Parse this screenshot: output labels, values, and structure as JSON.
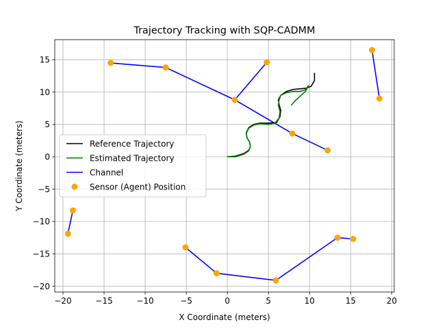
{
  "chart_data": {
    "type": "line",
    "title": "Trajectory Tracking with SQP-CADMM",
    "xlabel": "X Coordinate (meters)",
    "ylabel": "Y Coordinate (meters)",
    "xlim": [
      -21.0,
      20.3
    ],
    "ylim": [
      -20.9,
      18.1
    ],
    "xticks": [
      -20,
      -15,
      -10,
      -5,
      0,
      5,
      10,
      15,
      20
    ],
    "yticks": [
      -20,
      -15,
      -10,
      -5,
      0,
      5,
      10,
      15
    ],
    "grid": true,
    "legend_position": "center-left",
    "legend": [
      "Reference Trajectory",
      "Estimated Trajectory",
      "Channel",
      "Sensor (Agent) Position"
    ],
    "colors": {
      "reference": "#000000",
      "estimated": "#008000",
      "channel": "#0000ff",
      "sensor": "#ffa500",
      "grid": "#b0b0b0"
    },
    "series": [
      {
        "name": "Reference Trajectory",
        "x": [
          0.0,
          1.0,
          2.0,
          2.6,
          2.8,
          2.7,
          2.4,
          2.3,
          2.6,
          3.2,
          4.0,
          5.0,
          6.0,
          6.4,
          6.5,
          6.3,
          6.2,
          6.5,
          7.2,
          8.0,
          8.8,
          9.6,
          10.2,
          10.6,
          10.6
        ],
        "y": [
          0.0,
          0.1,
          0.5,
          1.0,
          1.6,
          2.3,
          2.9,
          3.7,
          4.5,
          5.0,
          5.2,
          5.2,
          5.3,
          6.2,
          7.2,
          8.0,
          8.8,
          9.5,
          10.1,
          10.4,
          10.5,
          10.6,
          10.9,
          11.8,
          12.9
        ]
      },
      {
        "name": "Estimated Trajectory",
        "x": [
          0.0,
          1.0,
          2.0,
          2.6,
          2.8,
          2.7,
          2.4,
          2.3,
          2.6,
          3.2,
          4.0,
          5.0,
          5.8,
          6.3,
          6.4,
          6.2,
          6.3,
          6.5,
          7.2,
          8.0,
          8.8,
          9.4,
          9.9,
          9.5,
          8.8,
          8.2,
          7.8
        ],
        "y": [
          0.0,
          0.0,
          0.4,
          0.9,
          1.6,
          2.3,
          2.9,
          3.6,
          4.4,
          4.9,
          5.1,
          5.0,
          5.2,
          6.0,
          7.0,
          8.0,
          8.8,
          9.5,
          9.9,
          10.1,
          10.1,
          10.3,
          11.0,
          10.1,
          9.3,
          8.6,
          8.0
        ]
      },
      {
        "name": "Channel",
        "segments": [
          {
            "x": [
              -14.2,
              -7.5,
              0.9,
              7.9,
              12.2
            ],
            "y": [
              14.5,
              13.8,
              8.8,
              3.6,
              1.0
            ]
          },
          {
            "x": [
              0.9,
              4.8
            ],
            "y": [
              8.8,
              14.6
            ]
          },
          {
            "x": [
              17.6,
              18.5
            ],
            "y": [
              16.5,
              9.0
            ]
          },
          {
            "x": [
              -19.4,
              -18.8
            ],
            "y": [
              -11.9,
              -8.3
            ]
          },
          {
            "x": [
              -5.1,
              -1.3,
              5.9,
              13.4,
              15.3
            ],
            "y": [
              -14.0,
              -18.0,
              -19.1,
              -12.5,
              -12.7
            ]
          }
        ]
      },
      {
        "name": "Sensor (Agent) Position",
        "x": [
          -14.2,
          -7.5,
          0.9,
          4.8,
          7.9,
          12.2,
          17.6,
          18.5,
          -19.4,
          -18.8,
          -5.1,
          -1.3,
          5.9,
          13.4,
          15.3
        ],
        "y": [
          14.5,
          13.8,
          8.8,
          14.6,
          3.6,
          1.0,
          16.5,
          9.0,
          -11.9,
          -8.3,
          -14.0,
          -18.0,
          -19.1,
          -12.5,
          -12.7
        ]
      }
    ]
  }
}
